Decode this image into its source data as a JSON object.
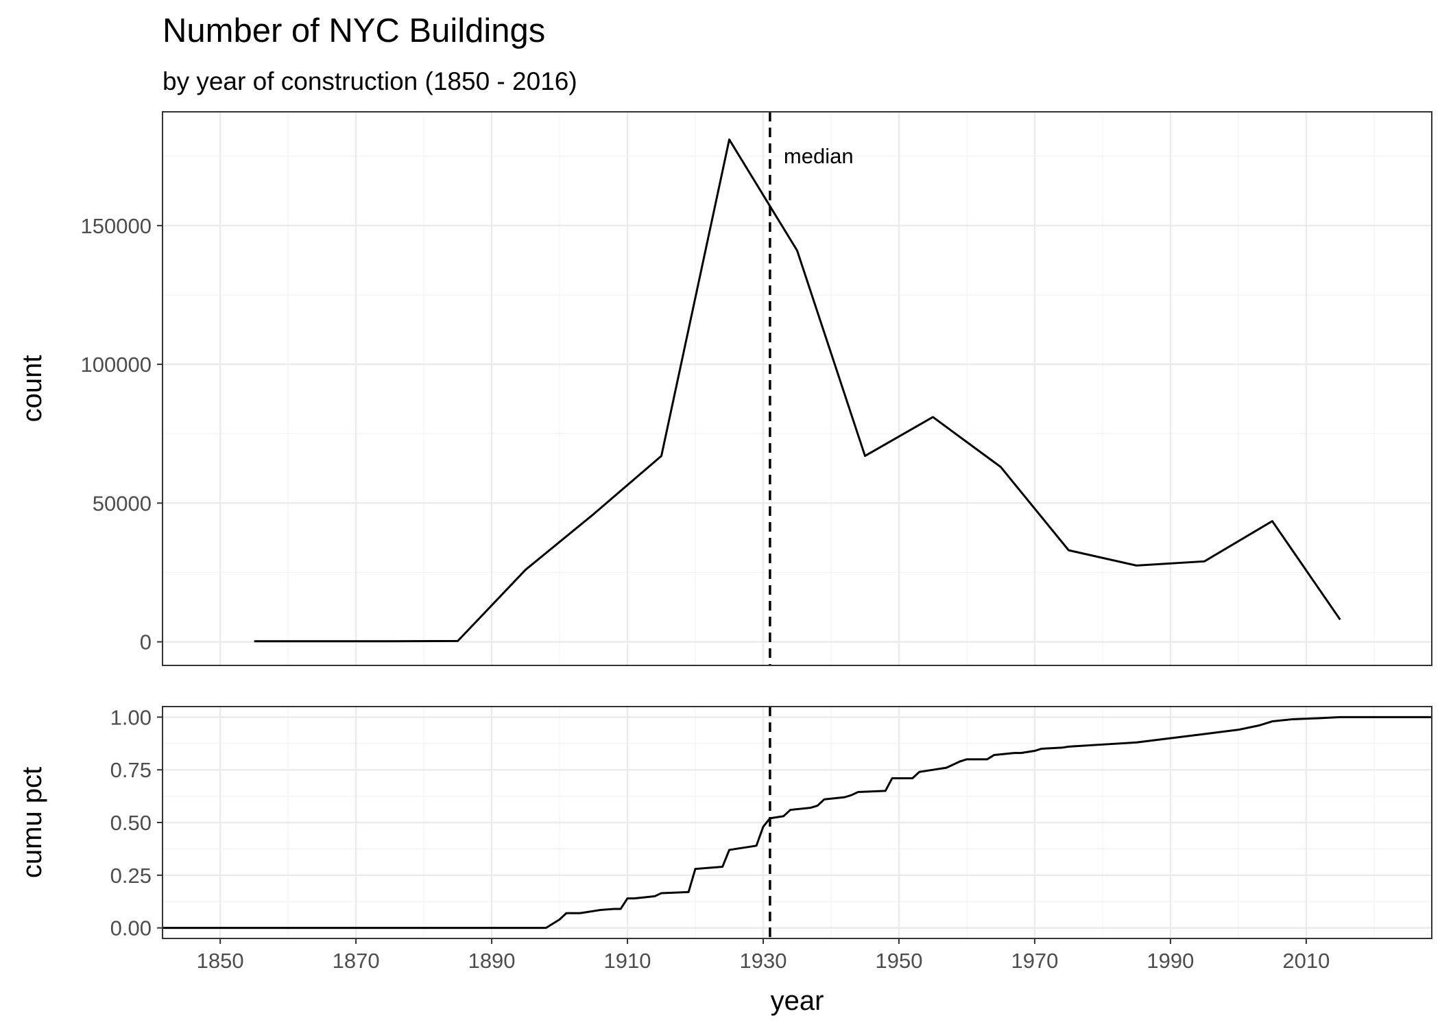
{
  "chart_data": [
    {
      "type": "line",
      "title": "Number of NYC Buildings",
      "subtitle": "by year of construction (1850 - 2016)",
      "xlabel": "",
      "ylabel": "count",
      "xlim": [
        1841.5,
        2028.5
      ],
      "ylim": [
        -8500,
        191000
      ],
      "x_ticks": [
        1850,
        1870,
        1890,
        1910,
        1930,
        1950,
        1970,
        1990,
        2010
      ],
      "y_ticks": [
        0,
        50000,
        100000,
        150000
      ],
      "y_tick_labels": [
        "0",
        "50000",
        "100000",
        "150000"
      ],
      "x": [
        1855,
        1865,
        1875,
        1885,
        1895,
        1905,
        1915,
        1925,
        1935,
        1945,
        1955,
        1965,
        1975,
        1985,
        1995,
        2005,
        2015
      ],
      "values": [
        200,
        200,
        200,
        300,
        26000,
        46000,
        67000,
        181000,
        141000,
        67000,
        81000,
        63000,
        33000,
        27500,
        29000,
        43500,
        8000
      ],
      "median_year": 1931,
      "median_label": "median",
      "grid": true
    },
    {
      "type": "line",
      "xlabel": "year",
      "ylabel": "cumu pct",
      "xlim": [
        1841.5,
        2028.5
      ],
      "ylim": [
        -0.05,
        1.05
      ],
      "x_ticks": [
        1850,
        1870,
        1890,
        1910,
        1930,
        1950,
        1970,
        1990,
        2010
      ],
      "y_ticks": [
        0,
        0.25,
        0.5,
        0.75,
        1
      ],
      "y_tick_labels": [
        "0.00",
        "0.25",
        "0.50",
        "0.75",
        "1.00"
      ],
      "x": [
        1841.5,
        1898,
        1899,
        1900,
        1901,
        1903,
        1904,
        1905,
        1906,
        1908,
        1909,
        1910,
        1911,
        1914,
        1915,
        1919,
        1920,
        1924,
        1925,
        1929,
        1930,
        1931,
        1933,
        1934,
        1937,
        1938,
        1939,
        1942,
        1943,
        1944,
        1948,
        1949,
        1952,
        1953,
        1955,
        1957,
        1959,
        1960,
        1963,
        1964,
        1967,
        1968,
        1970,
        1971,
        1974,
        1975,
        1980,
        1985,
        1990,
        1995,
        2000,
        2003,
        2005,
        2008,
        2012,
        2015,
        2028.5
      ],
      "values": [
        0,
        0,
        0.02,
        0.04,
        0.07,
        0.07,
        0.075,
        0.08,
        0.085,
        0.09,
        0.09,
        0.14,
        0.14,
        0.15,
        0.165,
        0.17,
        0.28,
        0.29,
        0.37,
        0.39,
        0.48,
        0.52,
        0.53,
        0.56,
        0.57,
        0.58,
        0.61,
        0.62,
        0.63,
        0.645,
        0.65,
        0.71,
        0.71,
        0.74,
        0.75,
        0.76,
        0.79,
        0.8,
        0.8,
        0.82,
        0.83,
        0.83,
        0.84,
        0.85,
        0.855,
        0.86,
        0.87,
        0.88,
        0.9,
        0.92,
        0.94,
        0.96,
        0.98,
        0.99,
        0.995,
        1,
        1
      ],
      "median_year": 1931,
      "grid": true
    }
  ]
}
